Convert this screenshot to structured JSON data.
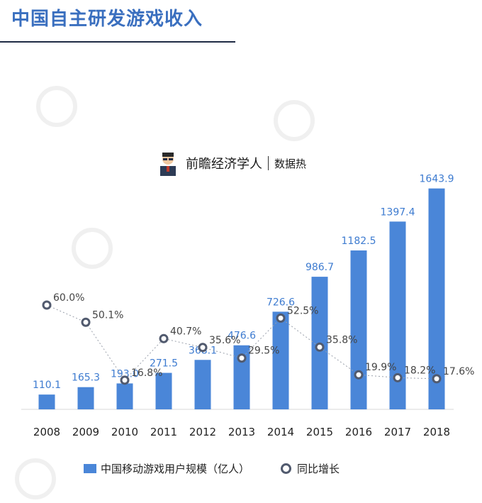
{
  "header": {
    "title": "中国自主研发游戏收入"
  },
  "brand": {
    "name": "前瞻经济学人",
    "sub": "数据热"
  },
  "colors": {
    "bar": "#4a86d8",
    "bar_label": "#3d7bd0",
    "marker": "#515a6e",
    "line": "#9aa0ab"
  },
  "chart_data": {
    "type": "bar",
    "categories": [
      "2008",
      "2009",
      "2010",
      "2011",
      "2012",
      "2013",
      "2014",
      "2015",
      "2016",
      "2017",
      "2018"
    ],
    "series": [
      {
        "name": "中国移动游戏用户规模（亿人）",
        "type": "bar",
        "values": [
          110.1,
          165.3,
          193.0,
          271.5,
          368.1,
          476.6,
          726.6,
          986.7,
          1182.5,
          1397.4,
          1643.9
        ],
        "labels": [
          "110.1",
          "165.3",
          "193.0",
          "271.5",
          "368.1",
          "476.6",
          "726.6",
          "986.7",
          "1182.5",
          "1397.4",
          "1643.9"
        ]
      },
      {
        "name": "同比增长",
        "type": "line",
        "values": [
          60.0,
          50.1,
          16.8,
          40.7,
          35.6,
          29.5,
          52.5,
          35.8,
          19.9,
          18.2,
          17.6
        ],
        "labels": [
          "60.0%",
          "50.1%",
          "16.8%",
          "40.7%",
          "35.6%",
          "29.5%",
          "52.5%",
          "35.8%",
          "19.9%",
          "18.2%",
          "17.6%"
        ]
      }
    ],
    "ylim": [
      0,
      1700
    ],
    "y2lim": [
      0,
      120
    ],
    "grid": false,
    "legend": "bottom"
  }
}
